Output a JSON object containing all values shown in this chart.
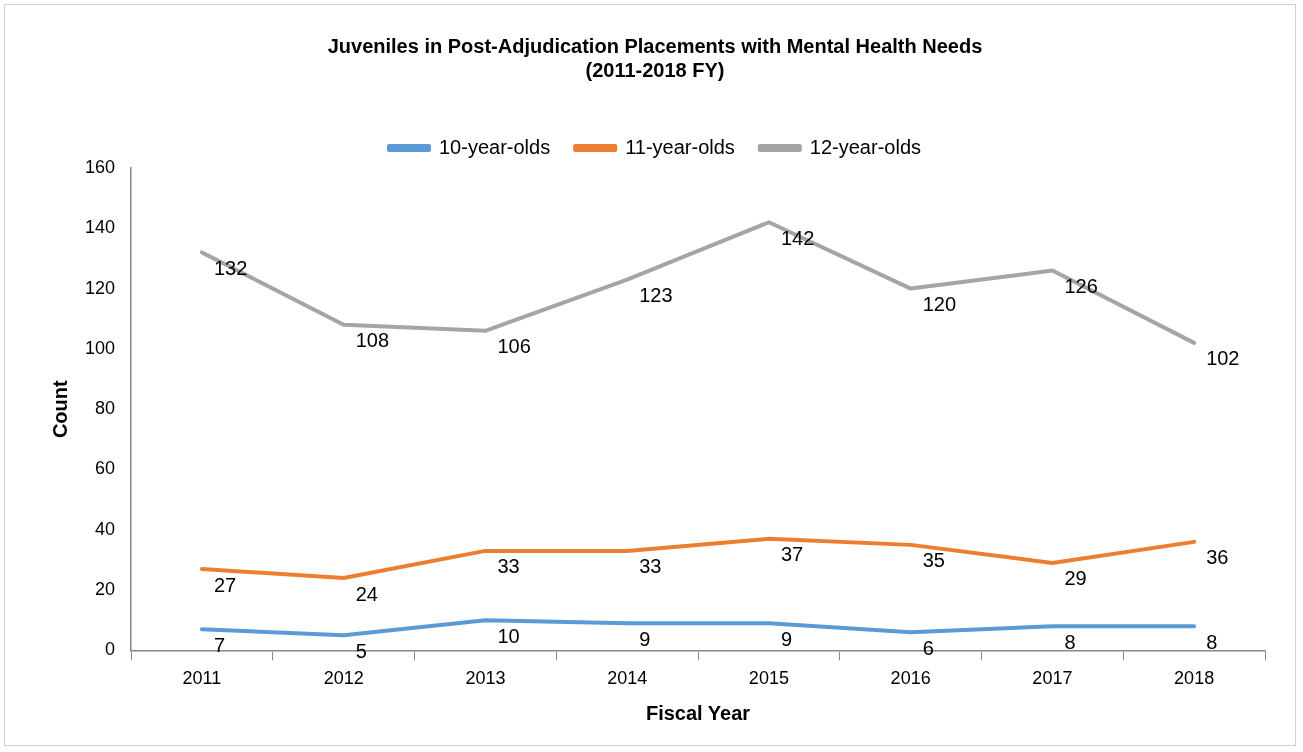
{
  "chart_data": {
    "type": "line",
    "title": "Juveniles in Post-Adjudication Placements with Mental Health Needs\n(2011-2018 FY)",
    "xlabel": "Fiscal Year",
    "ylabel": "Count",
    "categories": [
      "2011",
      "2012",
      "2013",
      "2014",
      "2015",
      "2016",
      "2017",
      "2018"
    ],
    "series": [
      {
        "name": "10-year-olds",
        "color": "#5b9bd5",
        "values": [
          7,
          5,
          10,
          9,
          9,
          6,
          8,
          8
        ]
      },
      {
        "name": "11-year-olds",
        "color": "#ed7d31",
        "values": [
          27,
          24,
          33,
          33,
          37,
          35,
          29,
          36
        ]
      },
      {
        "name": "12-year-olds",
        "color": "#a5a5a5",
        "values": [
          132,
          108,
          106,
          123,
          142,
          120,
          126,
          102
        ]
      }
    ],
    "ylim": [
      0,
      160
    ],
    "yticks": [
      0,
      20,
      40,
      60,
      80,
      100,
      120,
      140,
      160
    ],
    "grid": false,
    "legend": "top",
    "marker": "none",
    "line_style": "solid",
    "data_labels": true
  }
}
